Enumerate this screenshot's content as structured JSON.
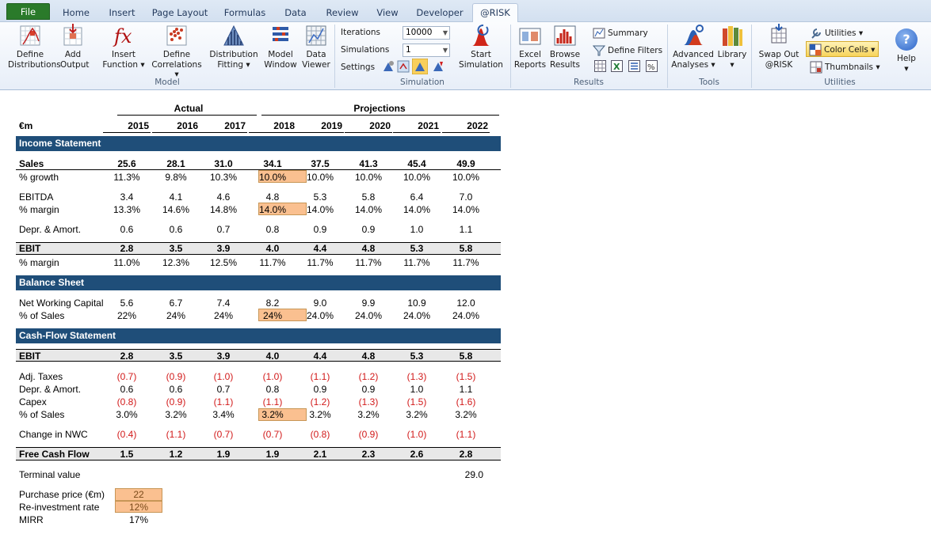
{
  "tabs": [
    "File",
    "Home",
    "Insert",
    "Page Layout",
    "Formulas",
    "Data",
    "Review",
    "View",
    "Developer",
    "@RISK"
  ],
  "ribbon": {
    "define_distributions": [
      "Define",
      "Distributions"
    ],
    "add_output": [
      "Add",
      "Output"
    ],
    "insert_function": [
      "Insert",
      "Function ▾"
    ],
    "define_correlations": [
      "Define",
      "Correlations ▾"
    ],
    "distribution_fitting": [
      "Distribution",
      "Fitting ▾"
    ],
    "model_window": [
      "Model",
      "Window"
    ],
    "data_viewer": [
      "Data",
      "Viewer"
    ],
    "iterations_label": "Iterations",
    "iterations_value": "10000",
    "simulations_label": "Simulations",
    "simulations_value": "1",
    "settings_label": "Settings",
    "start_simulation": [
      "Start",
      "Simulation"
    ],
    "excel_reports": [
      "Excel",
      "Reports"
    ],
    "browse_results": [
      "Browse",
      "Results"
    ],
    "summary": "Summary",
    "define_filters": "Define Filters",
    "advanced_analyses": [
      "Advanced",
      "Analyses ▾"
    ],
    "library": [
      "Library",
      "▾"
    ],
    "swap_out": [
      "Swap Out",
      "@RISK"
    ],
    "utilities": "Utilities ▾",
    "color_cells": "Color Cells ▾",
    "thumbnails": "Thumbnails ▾",
    "help": "Help",
    "groups": {
      "model": "Model",
      "simulation": "Simulation",
      "results": "Results",
      "tools": "Tools",
      "utilities": "Utilities"
    }
  },
  "sheet": {
    "unit": "€m",
    "actual_label": "Actual",
    "projections_label": "Projections",
    "years": [
      "2015",
      "2016",
      "2017",
      "2018",
      "2019",
      "2020",
      "2021",
      "2022"
    ],
    "sections": {
      "income": "Income Statement",
      "balance": "Balance Sheet",
      "cashflow": "Cash-Flow Statement"
    },
    "rows": {
      "sales": {
        "label": "Sales",
        "values": [
          "25.6",
          "28.1",
          "31.0",
          "34.1",
          "37.5",
          "41.3",
          "45.4",
          "49.9"
        ]
      },
      "growth": {
        "label": "% growth",
        "values": [
          "11.3%",
          "9.8%",
          "10.3%",
          "10.0%",
          "10.0%",
          "10.0%",
          "10.0%",
          "10.0%"
        ]
      },
      "ebitda": {
        "label": "EBITDA",
        "values": [
          "3.4",
          "4.1",
          "4.6",
          "4.8",
          "5.3",
          "5.8",
          "6.4",
          "7.0"
        ]
      },
      "ebitda_margin": {
        "label": "% margin",
        "values": [
          "13.3%",
          "14.6%",
          "14.8%",
          "14.0%",
          "14.0%",
          "14.0%",
          "14.0%",
          "14.0%"
        ]
      },
      "da": {
        "label": "Depr. & Amort.",
        "values": [
          "0.6",
          "0.6",
          "0.7",
          "0.8",
          "0.9",
          "0.9",
          "1.0",
          "1.1"
        ]
      },
      "ebit": {
        "label": "EBIT",
        "values": [
          "2.8",
          "3.5",
          "3.9",
          "4.0",
          "4.4",
          "4.8",
          "5.3",
          "5.8"
        ]
      },
      "ebit_margin": {
        "label": "% margin",
        "values": [
          "11.0%",
          "12.3%",
          "12.5%",
          "11.7%",
          "11.7%",
          "11.7%",
          "11.7%",
          "11.7%"
        ]
      },
      "nwc": {
        "label": "Net Working Capital",
        "values": [
          "5.6",
          "6.7",
          "7.4",
          "8.2",
          "9.0",
          "9.9",
          "10.9",
          "12.0"
        ]
      },
      "nwc_pct": {
        "label": "% of Sales",
        "values": [
          "22%",
          "24%",
          "24%",
          "24%",
          "24.0%",
          "24.0%",
          "24.0%",
          "24.0%"
        ]
      },
      "cf_ebit": {
        "label": "EBIT",
        "values": [
          "2.8",
          "3.5",
          "3.9",
          "4.0",
          "4.4",
          "4.8",
          "5.3",
          "5.8"
        ]
      },
      "taxes": {
        "label": "Adj. Taxes",
        "values": [
          "(0.7)",
          "(0.9)",
          "(1.0)",
          "(1.0)",
          "(1.1)",
          "(1.2)",
          "(1.3)",
          "(1.5)"
        ]
      },
      "cf_da": {
        "label": "Depr. & Amort.",
        "values": [
          "0.6",
          "0.6",
          "0.7",
          "0.8",
          "0.9",
          "0.9",
          "1.0",
          "1.1"
        ]
      },
      "capex": {
        "label": "Capex",
        "values": [
          "(0.8)",
          "(0.9)",
          "(1.1)",
          "(1.1)",
          "(1.2)",
          "(1.3)",
          "(1.5)",
          "(1.6)"
        ]
      },
      "capex_pct": {
        "label": "% of Sales",
        "values": [
          "3.0%",
          "3.2%",
          "3.4%",
          "3.2%",
          "3.2%",
          "3.2%",
          "3.2%",
          "3.2%"
        ]
      },
      "nwc_change": {
        "label": "Change in NWC",
        "values": [
          "(0.4)",
          "(1.1)",
          "(0.7)",
          "(0.7)",
          "(0.8)",
          "(0.9)",
          "(1.0)",
          "(1.1)"
        ]
      },
      "fcf": {
        "label": "Free Cash Flow",
        "values": [
          "1.5",
          "1.2",
          "1.9",
          "1.9",
          "2.1",
          "2.3",
          "2.6",
          "2.8"
        ]
      }
    },
    "terminal": {
      "label": "Terminal value",
      "value": "29.0"
    },
    "purchase_price": {
      "label": "Purchase price (€m)",
      "value": "22"
    },
    "reinvestment": {
      "label": "Re-investment rate",
      "value": "12%"
    },
    "mirr": {
      "label": "MIRR",
      "value": "17%"
    },
    "colors": {
      "section_band": "#1f4e79",
      "input_cell": "#fac090",
      "negative": "#d21a1a",
      "file_tab": "#2a7a2a"
    }
  }
}
